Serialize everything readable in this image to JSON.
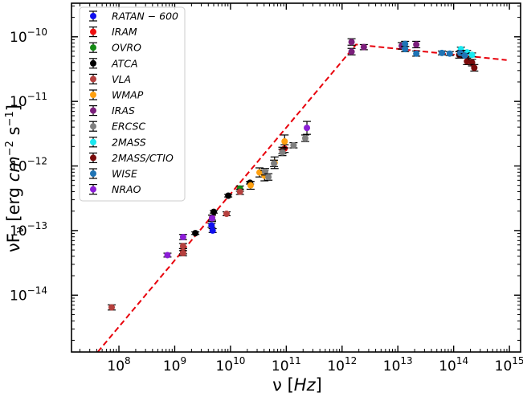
{
  "chart_data": {
    "type": "scatter",
    "x_scale": "log",
    "y_scale": "log",
    "xlim_log10": [
      7.15,
      15.2
    ],
    "ylim_log10": [
      -14.88,
      -9.48
    ],
    "xlabel_parts": {
      "nu": "ν",
      "open": " [",
      "unit": "Hz",
      "close": "]"
    },
    "ylabel_parts": {
      "nuf": "νF",
      "sub": "ν",
      "open": " [erg ",
      "cm": "cm",
      "exp2": "−2",
      "s": " s",
      "exp1": "−1",
      "close": "]"
    },
    "x_ticks": [
      {
        "base": "10",
        "exp": "8",
        "log": 8
      },
      {
        "base": "10",
        "exp": "9",
        "log": 9
      },
      {
        "base": "10",
        "exp": "10",
        "log": 10
      },
      {
        "base": "10",
        "exp": "11",
        "log": 11
      },
      {
        "base": "10",
        "exp": "12",
        "log": 12
      },
      {
        "base": "10",
        "exp": "13",
        "log": 13
      },
      {
        "base": "10",
        "exp": "14",
        "log": 14
      },
      {
        "base": "10",
        "exp": "15",
        "log": 15
      }
    ],
    "y_ticks": [
      {
        "base": "10",
        "exp": "−14",
        "log": -14
      },
      {
        "base": "10",
        "exp": "−13",
        "log": -13
      },
      {
        "base": "10",
        "exp": "−12",
        "log": -12
      },
      {
        "base": "10",
        "exp": "−11",
        "log": -11
      },
      {
        "base": "10",
        "exp": "−10",
        "log": -10
      }
    ],
    "model_line": {
      "color": "#e8000b",
      "style": "dashed",
      "points_log10": [
        [
          7.62,
          -14.88
        ],
        [
          12.25,
          -10.12
        ],
        [
          14.95,
          -10.36
        ]
      ]
    },
    "series": [
      {
        "name": "RATAN − 600",
        "color": "#1010ee",
        "points": [
          {
            "x": 9.68,
            "y": -13.0,
            "err": 0.03
          },
          {
            "x": 9.66,
            "y": -12.92,
            "err": 0.03
          }
        ]
      },
      {
        "name": "IRAM",
        "color": "#ee1010",
        "points": [
          {
            "x": 10.97,
            "y": -11.73,
            "err": 0.06
          }
        ]
      },
      {
        "name": "OVRO",
        "color": "#148a14",
        "points": [
          {
            "x": 10.17,
            "y": -12.35,
            "err": 0.04
          }
        ]
      },
      {
        "name": "ATCA",
        "color": "#000000",
        "points": [
          {
            "x": 9.37,
            "y": -13.04,
            "err": 0.02
          },
          {
            "x": 9.7,
            "y": -12.71,
            "err": 0.02
          },
          {
            "x": 9.96,
            "y": -12.46,
            "err": 0.02
          },
          {
            "x": 10.35,
            "y": -12.26,
            "err": 0.02
          }
        ]
      },
      {
        "name": "VLA",
        "color": "#b5403e",
        "points": [
          {
            "x": 7.87,
            "y": -14.19,
            "err": 0.04
          },
          {
            "x": 9.15,
            "y": -13.32,
            "err": 0.04
          },
          {
            "x": 9.15,
            "y": -13.24,
            "err": 0.04
          },
          {
            "x": 9.15,
            "y": -13.35,
            "err": 0.04
          },
          {
            "x": 9.67,
            "y": -12.8,
            "err": 0.04
          },
          {
            "x": 9.93,
            "y": -12.74,
            "err": 0.03
          },
          {
            "x": 10.17,
            "y": -12.4,
            "err": 0.04
          },
          {
            "x": 10.93,
            "y": -11.76,
            "err": 0.05
          }
        ]
      },
      {
        "name": "WMAP",
        "color": "#ffa010",
        "points": [
          {
            "x": 10.36,
            "y": -12.3,
            "err": 0.06
          },
          {
            "x": 10.52,
            "y": -12.1,
            "err": 0.07
          },
          {
            "x": 10.61,
            "y": -12.15,
            "err": 0.08
          },
          {
            "x": 10.79,
            "y": -11.95,
            "err": 0.09
          },
          {
            "x": 10.97,
            "y": -11.62,
            "err": 0.1
          }
        ]
      },
      {
        "name": "IRAS",
        "color": "#7b1f7b",
        "points": [
          {
            "x": 12.17,
            "y": -10.08,
            "err": 0.05
          },
          {
            "x": 12.17,
            "y": -10.23,
            "err": 0.05
          },
          {
            "x": 12.39,
            "y": -10.16,
            "err": 0.04
          },
          {
            "x": 13.07,
            "y": -10.14,
            "err": 0.05
          },
          {
            "x": 13.33,
            "y": -10.12,
            "err": 0.05
          }
        ]
      },
      {
        "name": "ERCSC",
        "color": "#7f7f7f",
        "points": [
          {
            "x": 10.62,
            "y": -12.09,
            "err": 0.05
          },
          {
            "x": 10.68,
            "y": -12.17,
            "err": 0.05
          },
          {
            "x": 10.78,
            "y": -11.96,
            "err": 0.05
          },
          {
            "x": 10.93,
            "y": -11.79,
            "err": 0.05
          },
          {
            "x": 11.13,
            "y": -11.68,
            "err": 0.04
          },
          {
            "x": 11.34,
            "y": -11.57,
            "err": 0.05
          }
        ]
      },
      {
        "name": "2MASS",
        "color": "#19e8f0",
        "points": [
          {
            "x": 14.13,
            "y": -10.19,
            "err": 0.03
          },
          {
            "x": 14.24,
            "y": -10.24,
            "err": 0.03
          },
          {
            "x": 14.33,
            "y": -10.28,
            "err": 0.03
          }
        ]
      },
      {
        "name": "2MASS/CTIO",
        "color": "#7a0a0a",
        "points": [
          {
            "x": 14.1,
            "y": -10.28,
            "err": 0.05
          },
          {
            "x": 14.14,
            "y": -10.26,
            "err": 0.05
          },
          {
            "x": 14.24,
            "y": -10.38,
            "err": 0.05
          },
          {
            "x": 14.33,
            "y": -10.4,
            "err": 0.05
          },
          {
            "x": 14.37,
            "y": -10.48,
            "err": 0.05
          }
        ]
      },
      {
        "name": "WISE",
        "color": "#1f74b5",
        "points": [
          {
            "x": 13.13,
            "y": -10.11,
            "err": 0.04
          },
          {
            "x": 13.13,
            "y": -10.19,
            "err": 0.04
          },
          {
            "x": 13.33,
            "y": -10.26,
            "err": 0.04
          },
          {
            "x": 13.79,
            "y": -10.25,
            "err": 0.03
          },
          {
            "x": 13.93,
            "y": -10.26,
            "err": 0.03
          },
          {
            "x": 14.12,
            "y": -10.25,
            "err": 0.03
          },
          {
            "x": 14.2,
            "y": -10.29,
            "err": 0.03
          }
        ]
      },
      {
        "name": "NRAO",
        "color": "#8b1ed6",
        "points": [
          {
            "x": 8.87,
            "y": -13.38,
            "err": 0.03
          },
          {
            "x": 9.15,
            "y": -13.1,
            "err": 0.04
          },
          {
            "x": 9.67,
            "y": -12.81,
            "err": 0.05
          },
          {
            "x": 11.37,
            "y": -11.41,
            "err": 0.1
          }
        ]
      }
    ]
  }
}
